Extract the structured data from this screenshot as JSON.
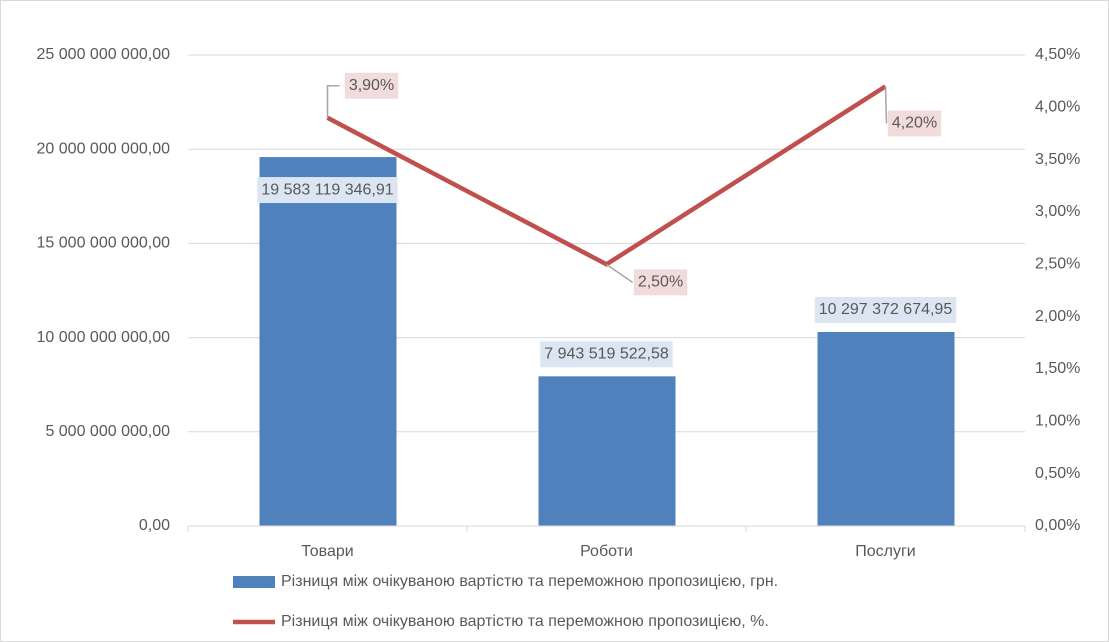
{
  "chart_data": {
    "type": "combo",
    "categories": [
      "Товари",
      "Роботи",
      "Послуги"
    ],
    "series": [
      {
        "name": "Різниця між очікуваною вартістю та переможною пропозицією, грн.",
        "type": "bar",
        "color": "#4f81bd",
        "values": [
          19583119346.91,
          7943519522.58,
          10297372674.95
        ],
        "value_labels": [
          "19 583 119 346,91",
          "7 943 519 522,58",
          "10 297 372 674,95"
        ]
      },
      {
        "name": "Різниця між очікуваною вартістю та переможною пропозицією, %.",
        "type": "line",
        "axis": "y2",
        "color": "#c0504d",
        "values": [
          3.9,
          2.5,
          4.2
        ],
        "value_labels": [
          "3,90%",
          "2,50%",
          "4,20%"
        ]
      }
    ],
    "ylim": [
      0,
      25000000000
    ],
    "yticks": [
      {
        "value": 0,
        "label": "0,00"
      },
      {
        "value": 5000000000,
        "label": "5 000 000 000,00"
      },
      {
        "value": 10000000000,
        "label": "10 000 000 000,00"
      },
      {
        "value": 15000000000,
        "label": "15 000 000 000,00"
      },
      {
        "value": 20000000000,
        "label": "20 000 000 000,00"
      },
      {
        "value": 25000000000,
        "label": "25 000 000 000,00"
      }
    ],
    "y2lim": [
      0,
      4.5
    ],
    "y2ticks": [
      {
        "value": 0,
        "label": "0,00%"
      },
      {
        "value": 0.5,
        "label": "0,50%"
      },
      {
        "value": 1,
        "label": "1,00%"
      },
      {
        "value": 1.5,
        "label": "1,50%"
      },
      {
        "value": 2,
        "label": "2,00%"
      },
      {
        "value": 2.5,
        "label": "2,50%"
      },
      {
        "value": 3,
        "label": "3,00%"
      },
      {
        "value": 3.5,
        "label": "3,50%"
      },
      {
        "value": 4,
        "label": "4,00%"
      },
      {
        "value": 4.5,
        "label": "4,50%"
      }
    ],
    "grid": true,
    "legend": "bottom"
  }
}
